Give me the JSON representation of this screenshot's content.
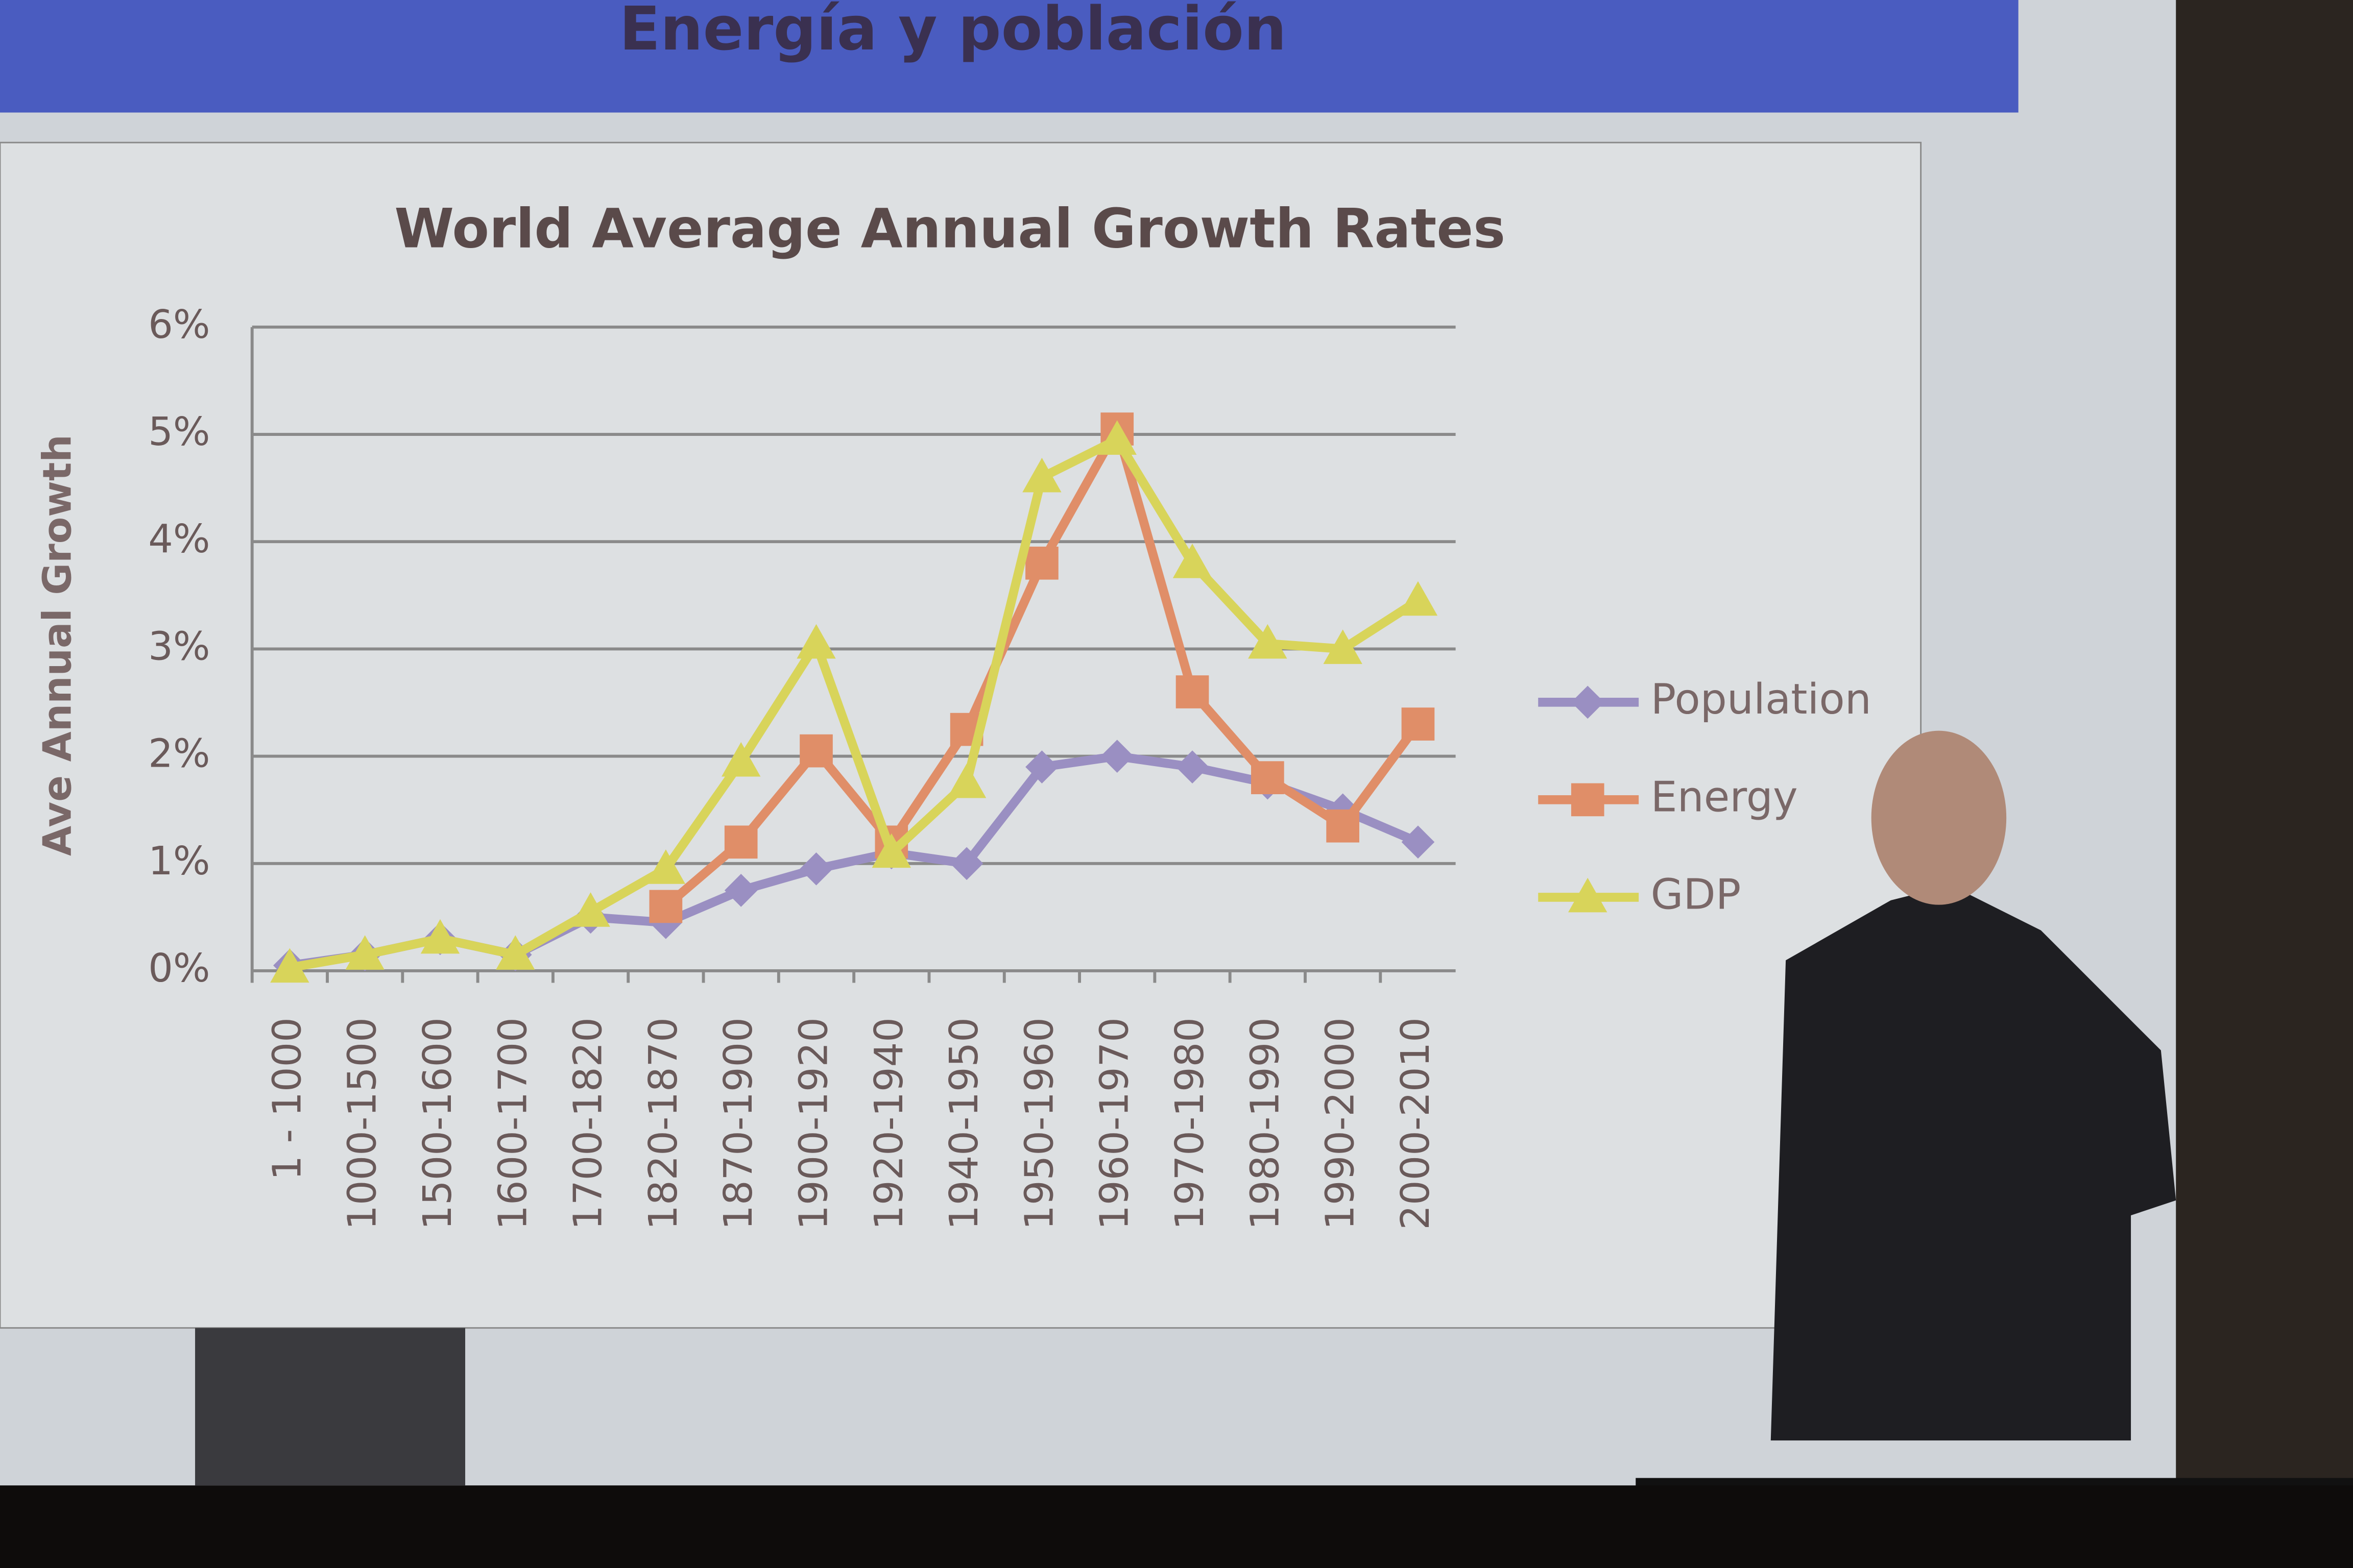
{
  "slide_title": "Energía y población",
  "chart_data": {
    "type": "line",
    "title": "World Average Annual Growth Rates",
    "y_label": "Ave Annual Growth",
    "categories": [
      "1 - 1000",
      "1000-1500",
      "1500-1600",
      "1600-1700",
      "1700-1820",
      "1820-1870",
      "1870-1900",
      "1900-1920",
      "1920-1940",
      "1940-1950",
      "1950-1960",
      "1960-1970",
      "1970-1980",
      "1980-1990",
      "1990-2000",
      "2000-2010"
    ],
    "series": [
      {
        "name": "Population",
        "color": "#9a8fc2",
        "marker": "diamond",
        "values": [
          0.05,
          0.15,
          0.3,
          0.15,
          0.5,
          0.45,
          0.75,
          0.95,
          1.1,
          1.0,
          1.9,
          2.0,
          1.9,
          1.75,
          1.5,
          1.2
        ]
      },
      {
        "name": "Energy",
        "color": "#e08e68",
        "marker": "square",
        "values": [
          null,
          null,
          null,
          null,
          null,
          0.6,
          1.2,
          2.05,
          1.2,
          2.25,
          3.8,
          5.05,
          2.6,
          1.8,
          1.35,
          2.3
        ]
      },
      {
        "name": "GDP",
        "color": "#d8d45a",
        "marker": "triangle",
        "values": [
          0.03,
          0.15,
          0.3,
          0.15,
          0.55,
          0.95,
          1.95,
          3.05,
          1.1,
          1.75,
          4.6,
          4.95,
          3.8,
          3.05,
          3.0,
          3.45
        ]
      }
    ],
    "ylim": [
      0,
      6
    ],
    "yticks": [
      {
        "value": 0,
        "label": "0%"
      },
      {
        "value": 1,
        "label": "1%"
      },
      {
        "value": 2,
        "label": "2%"
      },
      {
        "value": 3,
        "label": "3%"
      },
      {
        "value": 4,
        "label": "4%"
      },
      {
        "value": 5,
        "label": "5%"
      },
      {
        "value": 6,
        "label": "6%"
      }
    ],
    "grid": true,
    "legend": "right"
  }
}
